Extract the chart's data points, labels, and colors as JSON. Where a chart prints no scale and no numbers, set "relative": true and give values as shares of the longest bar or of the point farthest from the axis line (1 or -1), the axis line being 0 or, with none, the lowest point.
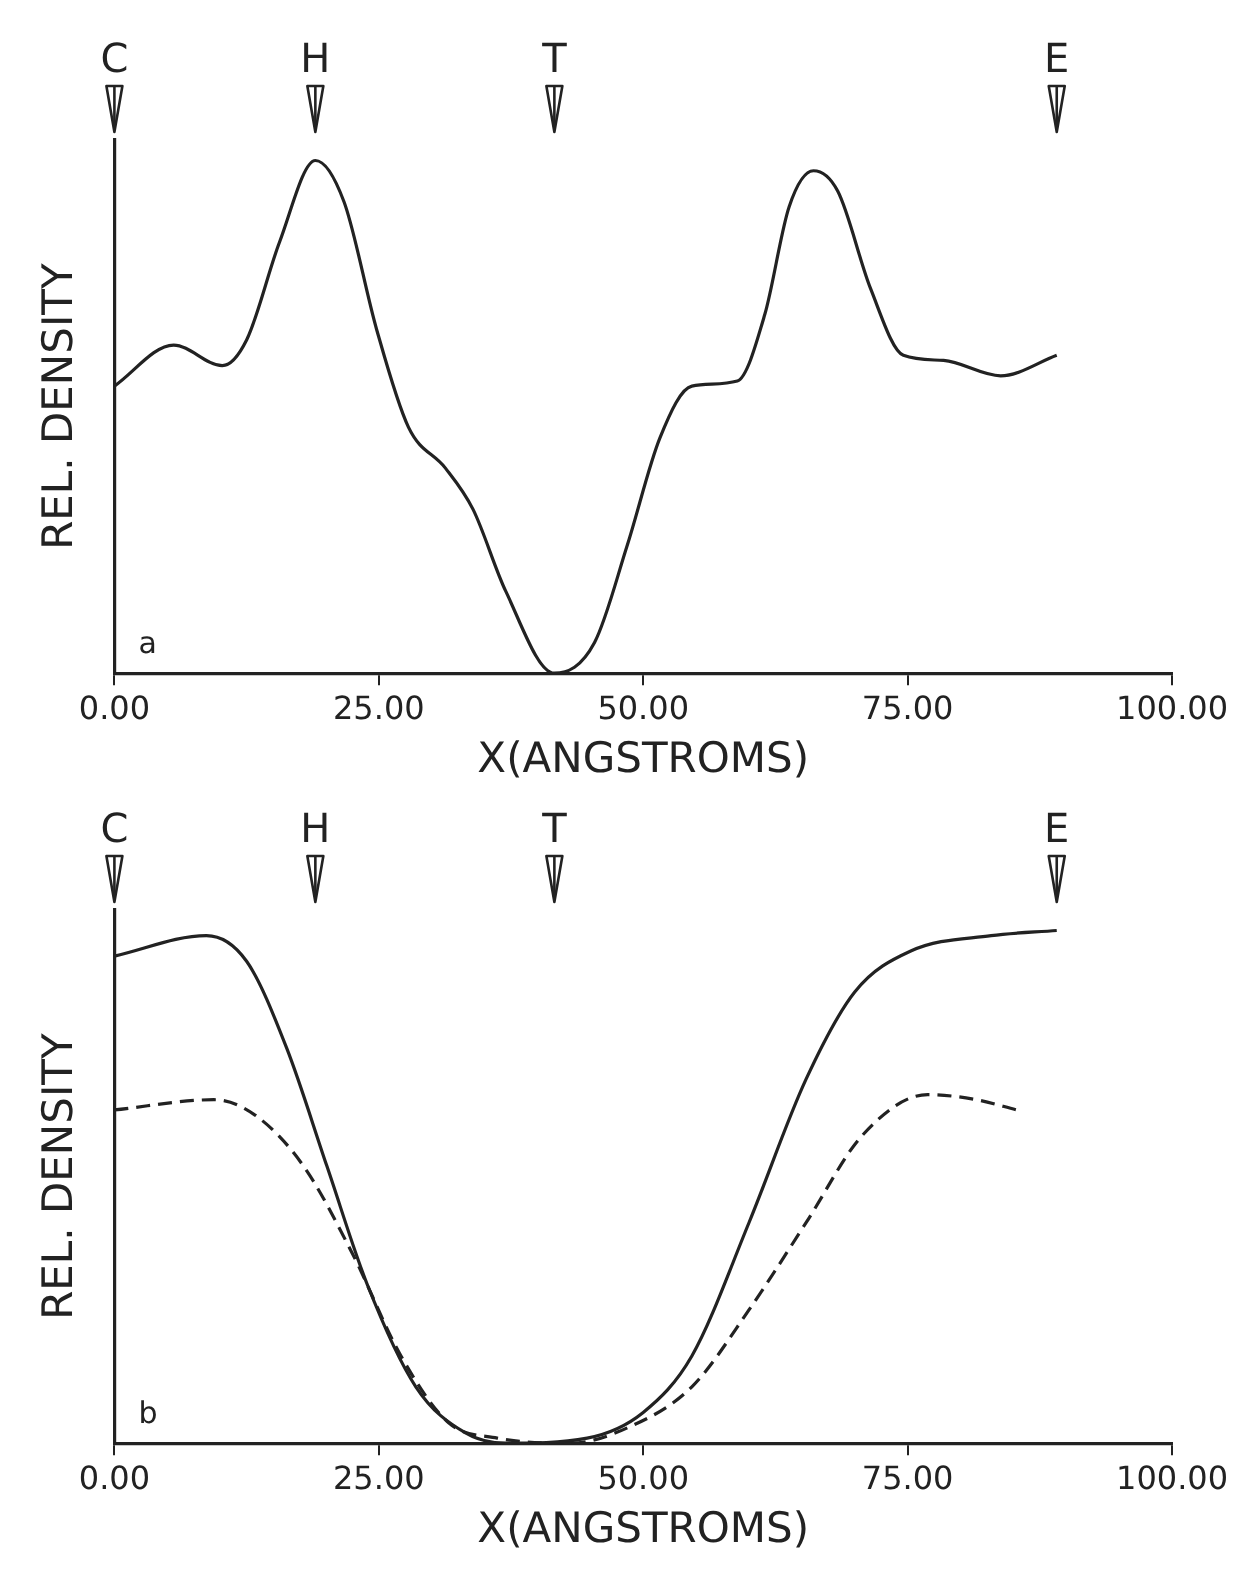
{
  "chart_data": [
    {
      "type": "line",
      "relative": true,
      "xlabel": "X(ANGSTROMS)",
      "ylabel": "REL. DENSITY",
      "marker": "none",
      "grid": false,
      "legend": false,
      "tick_labels": "x",
      "xlim": [
        0,
        100
      ],
      "xticks": [
        {
          "value": 0,
          "label": "0.00"
        },
        {
          "value": 25,
          "label": "25.00"
        },
        {
          "value": 50,
          "label": "50.00"
        },
        {
          "value": 75,
          "label": "75.00"
        },
        {
          "value": 100,
          "label": "100.00"
        }
      ],
      "annotations": [
        "a"
      ],
      "ref_lines": [
        {
          "axis": "x",
          "value": 0,
          "label": "C"
        },
        {
          "axis": "x",
          "value": 19,
          "label": "H"
        },
        {
          "axis": "x",
          "value": 41.6,
          "label": "T"
        },
        {
          "axis": "x",
          "value": 89.1,
          "label": "E"
        }
      ],
      "series": [
        {
          "color": "#222222",
          "line_style": "solid",
          "x": [
            0,
            5.6,
            10.2,
            12.5,
            15.6,
            19.0,
            21.7,
            24.8,
            27.8,
            31.3,
            33.9,
            37.0,
            41.6,
            45.4,
            48.5,
            51.6,
            54.6,
            58.9,
            61.5,
            63.8,
            66.1,
            68.4,
            71.5,
            74.6,
            78.4,
            83.8,
            89.1
          ],
          "values": [
            0.56,
            0.64,
            0.6,
            0.65,
            0.84,
            1.0,
            0.92,
            0.67,
            0.48,
            0.4,
            0.32,
            0.16,
            0.0,
            0.06,
            0.25,
            0.46,
            0.56,
            0.57,
            0.7,
            0.91,
            0.98,
            0.94,
            0.75,
            0.62,
            0.61,
            0.58,
            0.62
          ]
        }
      ]
    },
    {
      "type": "line",
      "relative": true,
      "xlabel": "X(ANGSTROMS)",
      "ylabel": "REL. DENSITY",
      "marker": "none",
      "grid": false,
      "legend": false,
      "tick_labels": "x",
      "xlim": [
        0,
        100
      ],
      "xticks": [
        {
          "value": 0,
          "label": "0.00"
        },
        {
          "value": 25,
          "label": "25.00"
        },
        {
          "value": 50,
          "label": "50.00"
        },
        {
          "value": 75,
          "label": "75.00"
        },
        {
          "value": 100,
          "label": "100.00"
        }
      ],
      "annotations": [
        "b"
      ],
      "ref_lines": [
        {
          "axis": "x",
          "value": 0,
          "label": "C"
        },
        {
          "axis": "x",
          "value": 19,
          "label": "H"
        },
        {
          "axis": "x",
          "value": 41.6,
          "label": "T"
        },
        {
          "axis": "x",
          "value": 89.1,
          "label": "E"
        }
      ],
      "series": [
        {
          "color": "#222222",
          "line_style": "solid",
          "x": [
            0,
            8.7,
            12.5,
            16.3,
            20.1,
            23.9,
            28.5,
            33.2,
            37.0,
            44.7,
            50.0,
            54.6,
            60.0,
            65.4,
            70.0,
            75.3,
            82.9,
            89.1
          ],
          "values": [
            0.95,
            0.99,
            0.94,
            0.77,
            0.54,
            0.31,
            0.11,
            0.02,
            0.0,
            0.01,
            0.06,
            0.17,
            0.43,
            0.71,
            0.88,
            0.96,
            0.99,
            1.0
          ]
        },
        {
          "color": "#222222",
          "line_style": "dashed",
          "x": [
            0,
            9.4,
            13.3,
            17.9,
            22.5,
            27.1,
            31.6,
            36.2,
            43.1,
            48.5,
            54.6,
            60.0,
            65.4,
            70.7,
            76.9,
            81.5,
            85.3
          ],
          "values": [
            0.65,
            0.67,
            0.64,
            0.54,
            0.37,
            0.17,
            0.04,
            0.01,
            0.0,
            0.03,
            0.11,
            0.26,
            0.43,
            0.6,
            0.68,
            0.67,
            0.65
          ]
        }
      ]
    }
  ]
}
